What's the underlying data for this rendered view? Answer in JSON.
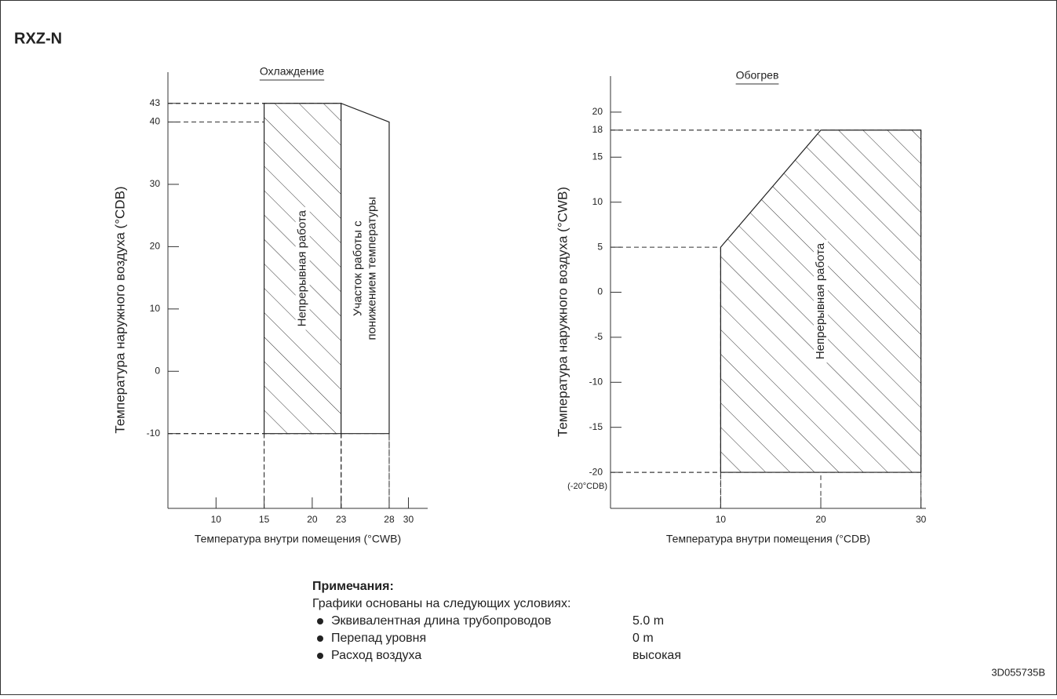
{
  "title": "RXZ-N",
  "chart_data": [
    {
      "type": "region",
      "title": "Охлаждение",
      "x_label": "Температура внутри помещения (°CWB)",
      "y_label": "Температура наружного воздуха (°CDB)",
      "xlim": [
        5,
        32
      ],
      "ylim": [
        -22,
        48
      ],
      "xticks": [
        10,
        15,
        20,
        23,
        28,
        30
      ],
      "yticks": [
        -10,
        0,
        10,
        20,
        30,
        40,
        43
      ],
      "regions": [
        {
          "label_lines": [
            "Непрерывная работа"
          ],
          "hatch": true,
          "x": [
            15,
            15,
            23,
            23
          ],
          "y": [
            -10,
            43,
            43,
            -10
          ]
        },
        {
          "label_lines": [
            "Участок работы с",
            "понижением температуры"
          ],
          "hatch": false,
          "x": [
            23,
            23,
            28,
            28
          ],
          "y": [
            -10,
            43,
            40,
            -10
          ]
        }
      ]
    },
    {
      "type": "region",
      "title": "Обогрев",
      "x_label": "Температура внутри помещения (°CDB)",
      "y_label": "Температура наружного воздуха (°CWB)",
      "xlim": [
        -1,
        30.5
      ],
      "ylim": [
        -24,
        24
      ],
      "xticks": [
        10,
        20,
        30
      ],
      "yticks": [
        -20,
        -15,
        -10,
        -5,
        0,
        5,
        10,
        15,
        18,
        20
      ],
      "annotation": "(-20°CDB)",
      "regions": [
        {
          "label_lines": [
            "Непрерывная работа"
          ],
          "hatch": true,
          "x": [
            10,
            10,
            20,
            30,
            30
          ],
          "y": [
            -20,
            5,
            18,
            18,
            -20
          ]
        }
      ]
    }
  ],
  "notes": {
    "heading": "Примечания:",
    "intro": "Графики основаны на следующих условиях:",
    "items": [
      {
        "label": "Эквивалентная длина трубопроводов",
        "value": "5.0 m"
      },
      {
        "label": "Перепад уровня",
        "value": "0 m"
      },
      {
        "label": "Расход воздуха",
        "value": "высокая"
      }
    ]
  },
  "doc_code": "3D055735B"
}
